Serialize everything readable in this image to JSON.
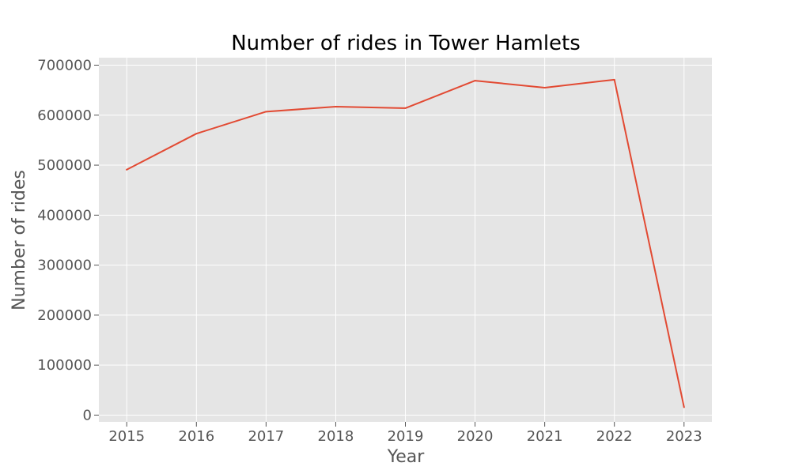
{
  "chart_data": {
    "type": "line",
    "title": "Number of rides in Tower Hamlets",
    "xlabel": "Year",
    "ylabel": "Number of rides",
    "x": [
      2015,
      2016,
      2017,
      2018,
      2019,
      2020,
      2021,
      2022,
      2023
    ],
    "series": [
      {
        "values": [
          491000,
          563000,
          607000,
          617000,
          614000,
          669000,
          655000,
          671000,
          16000
        ],
        "color": "#E24A33"
      }
    ],
    "xticks": [
      "2015",
      "2016",
      "2017",
      "2018",
      "2019",
      "2020",
      "2021",
      "2022",
      "2023"
    ],
    "yticks": [
      0,
      100000,
      200000,
      300000,
      400000,
      500000,
      600000,
      700000
    ],
    "ytick_labels": [
      "0",
      "100000",
      "200000",
      "300000",
      "400000",
      "500000",
      "600000",
      "700000"
    ],
    "xlim": [
      2014.6,
      2023.4
    ],
    "ylim": [
      -13500,
      715000
    ],
    "grid": true,
    "style": {
      "plot_background": "#E5E5E5",
      "grid_color": "#FFFFFF",
      "tick_color": "#555555"
    }
  }
}
